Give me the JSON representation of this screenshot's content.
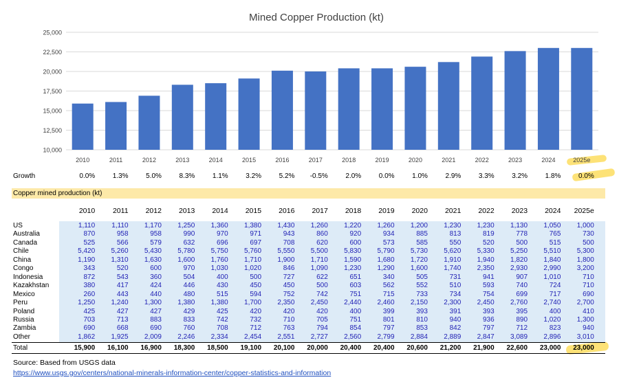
{
  "chart_data": {
    "type": "bar",
    "title": "Mined Copper Production (kt)",
    "categories": [
      "2010",
      "2011",
      "2012",
      "2013",
      "2014",
      "2015",
      "2016",
      "2017",
      "2018",
      "2019",
      "2020",
      "2021",
      "2022",
      "2023",
      "2024",
      "2025e"
    ],
    "values": [
      15900,
      16100,
      16900,
      18300,
      18500,
      19100,
      20100,
      20000,
      20400,
      20400,
      20600,
      21200,
      21900,
      22600,
      23000,
      23000
    ],
    "ylim": [
      10000,
      25000
    ],
    "yticks": [
      "10,000",
      "12,500",
      "15,000",
      "17,500",
      "20,000",
      "22,500",
      "25,000"
    ],
    "ytick_values": [
      10000,
      12500,
      15000,
      17500,
      20000,
      22500,
      25000
    ],
    "bar_color": "#4472c4",
    "xlabel": "",
    "ylabel": ""
  },
  "growth": {
    "label": "Growth",
    "values": [
      "0.0%",
      "1.3%",
      "5.0%",
      "8.3%",
      "1.1%",
      "3.2%",
      "5.2%",
      "-0.5%",
      "2.0%",
      "0.0%",
      "1.0%",
      "2.9%",
      "3.3%",
      "3.2%",
      "1.8%",
      "0.0%"
    ]
  },
  "table": {
    "section_title": "Copper mined production (kt)",
    "years": [
      "2010",
      "2011",
      "2012",
      "2013",
      "2014",
      "2015",
      "2016",
      "2017",
      "2018",
      "2019",
      "2020",
      "2021",
      "2022",
      "2023",
      "2024",
      "2025e"
    ],
    "rows": [
      {
        "name": "US",
        "values": [
          "1,110",
          "1,110",
          "1,170",
          "1,250",
          "1,360",
          "1,380",
          "1,430",
          "1,260",
          "1,220",
          "1,260",
          "1,200",
          "1,230",
          "1,230",
          "1,130",
          "1,050",
          "1,000"
        ]
      },
      {
        "name": "Australia",
        "values": [
          "870",
          "958",
          "958",
          "990",
          "970",
          "971",
          "943",
          "860",
          "920",
          "934",
          "885",
          "813",
          "819",
          "778",
          "765",
          "730"
        ]
      },
      {
        "name": "Canada",
        "values": [
          "525",
          "566",
          "579",
          "632",
          "696",
          "697",
          "708",
          "620",
          "600",
          "573",
          "585",
          "550",
          "520",
          "500",
          "515",
          "500"
        ]
      },
      {
        "name": "Chile",
        "values": [
          "5,420",
          "5,260",
          "5,430",
          "5,780",
          "5,750",
          "5,760",
          "5,550",
          "5,500",
          "5,830",
          "5,790",
          "5,730",
          "5,620",
          "5,330",
          "5,250",
          "5,510",
          "5,300"
        ]
      },
      {
        "name": "China",
        "values": [
          "1,190",
          "1,310",
          "1,630",
          "1,600",
          "1,760",
          "1,710",
          "1,900",
          "1,710",
          "1,590",
          "1,680",
          "1,720",
          "1,910",
          "1,940",
          "1,820",
          "1,840",
          "1,800"
        ]
      },
      {
        "name": "Congo",
        "values": [
          "343",
          "520",
          "600",
          "970",
          "1,030",
          "1,020",
          "846",
          "1,090",
          "1,230",
          "1,290",
          "1,600",
          "1,740",
          "2,350",
          "2,930",
          "2,990",
          "3,200"
        ]
      },
      {
        "name": "Indonesia",
        "values": [
          "872",
          "543",
          "360",
          "504",
          "400",
          "500",
          "727",
          "622",
          "651",
          "340",
          "505",
          "731",
          "941",
          "907",
          "1,010",
          "710"
        ]
      },
      {
        "name": "Kazakhstan",
        "values": [
          "380",
          "417",
          "424",
          "446",
          "430",
          "450",
          "450",
          "500",
          "603",
          "562",
          "552",
          "510",
          "593",
          "740",
          "724",
          "710"
        ]
      },
      {
        "name": "Mexico",
        "values": [
          "260",
          "443",
          "440",
          "480",
          "515",
          "594",
          "752",
          "742",
          "751",
          "715",
          "733",
          "734",
          "754",
          "699",
          "717",
          "690"
        ]
      },
      {
        "name": "Peru",
        "values": [
          "1,250",
          "1,240",
          "1,300",
          "1,380",
          "1,380",
          "1,700",
          "2,350",
          "2,450",
          "2,440",
          "2,460",
          "2,150",
          "2,300",
          "2,450",
          "2,760",
          "2,740",
          "2,700"
        ]
      },
      {
        "name": "Poland",
        "values": [
          "425",
          "427",
          "427",
          "429",
          "425",
          "420",
          "420",
          "420",
          "400",
          "399",
          "393",
          "391",
          "393",
          "395",
          "400",
          "410"
        ]
      },
      {
        "name": "Russia",
        "values": [
          "703",
          "713",
          "883",
          "833",
          "742",
          "732",
          "710",
          "705",
          "751",
          "801",
          "810",
          "940",
          "936",
          "890",
          "1,020",
          "1,300"
        ]
      },
      {
        "name": "Zambia",
        "values": [
          "690",
          "668",
          "690",
          "760",
          "708",
          "712",
          "763",
          "794",
          "854",
          "797",
          "853",
          "842",
          "797",
          "712",
          "823",
          "940"
        ]
      },
      {
        "name": "Other",
        "values": [
          "1,862",
          "1,925",
          "2,009",
          "2,246",
          "2,334",
          "2,454",
          "2,551",
          "2,727",
          "2,560",
          "2,799",
          "2,884",
          "2,889",
          "2,847",
          "3,089",
          "2,896",
          "3,010"
        ]
      }
    ],
    "total": {
      "name": "Total",
      "values": [
        "15,900",
        "16,100",
        "16,900",
        "18,300",
        "18,500",
        "19,100",
        "20,100",
        "20,000",
        "20,400",
        "20,400",
        "20,600",
        "21,200",
        "21,900",
        "22,600",
        "23,000",
        "23,000"
      ]
    }
  },
  "source": {
    "text": "Source: Based from USGS data",
    "link": "https://www.usgs.gov/centers/national-minerals-information-center/copper-statistics-and-information"
  },
  "colors": {
    "bar": "#4472c4",
    "highlight": "#fde277",
    "table_bg": "#ddebf7",
    "link": "#1f4fbf"
  }
}
